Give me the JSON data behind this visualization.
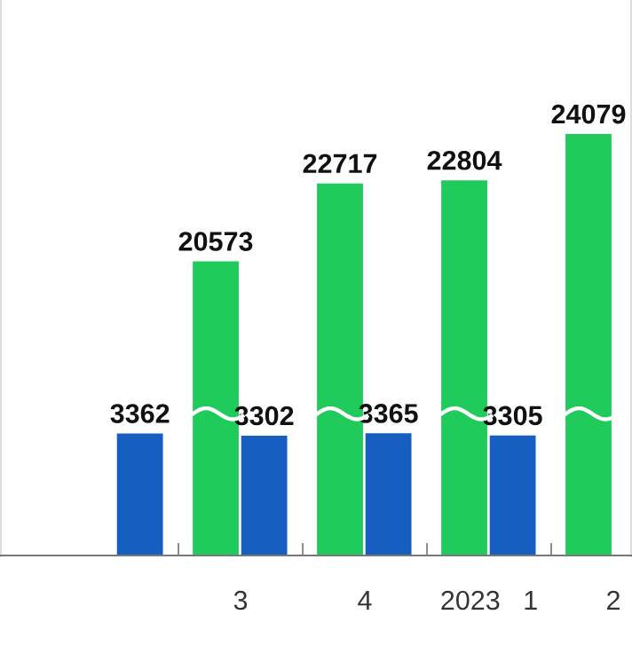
{
  "chart_data": {
    "type": "bar",
    "categories": [
      null,
      "3",
      "4",
      "2023   1",
      "2"
    ],
    "series": [
      {
        "color": "#1fcb5b",
        "axis": "y2",
        "values": [
          null,
          20573,
          22717,
          22804,
          24079
        ]
      },
      {
        "color": "#165fc1",
        "values": [
          3362,
          3302,
          3365,
          3305,
          null
        ]
      }
    ],
    "ylim": [
      0,
      15300
    ],
    "y2lim": [
      12470,
      27770
    ],
    "data_labels": true,
    "grid": false,
    "legend": false
  }
}
